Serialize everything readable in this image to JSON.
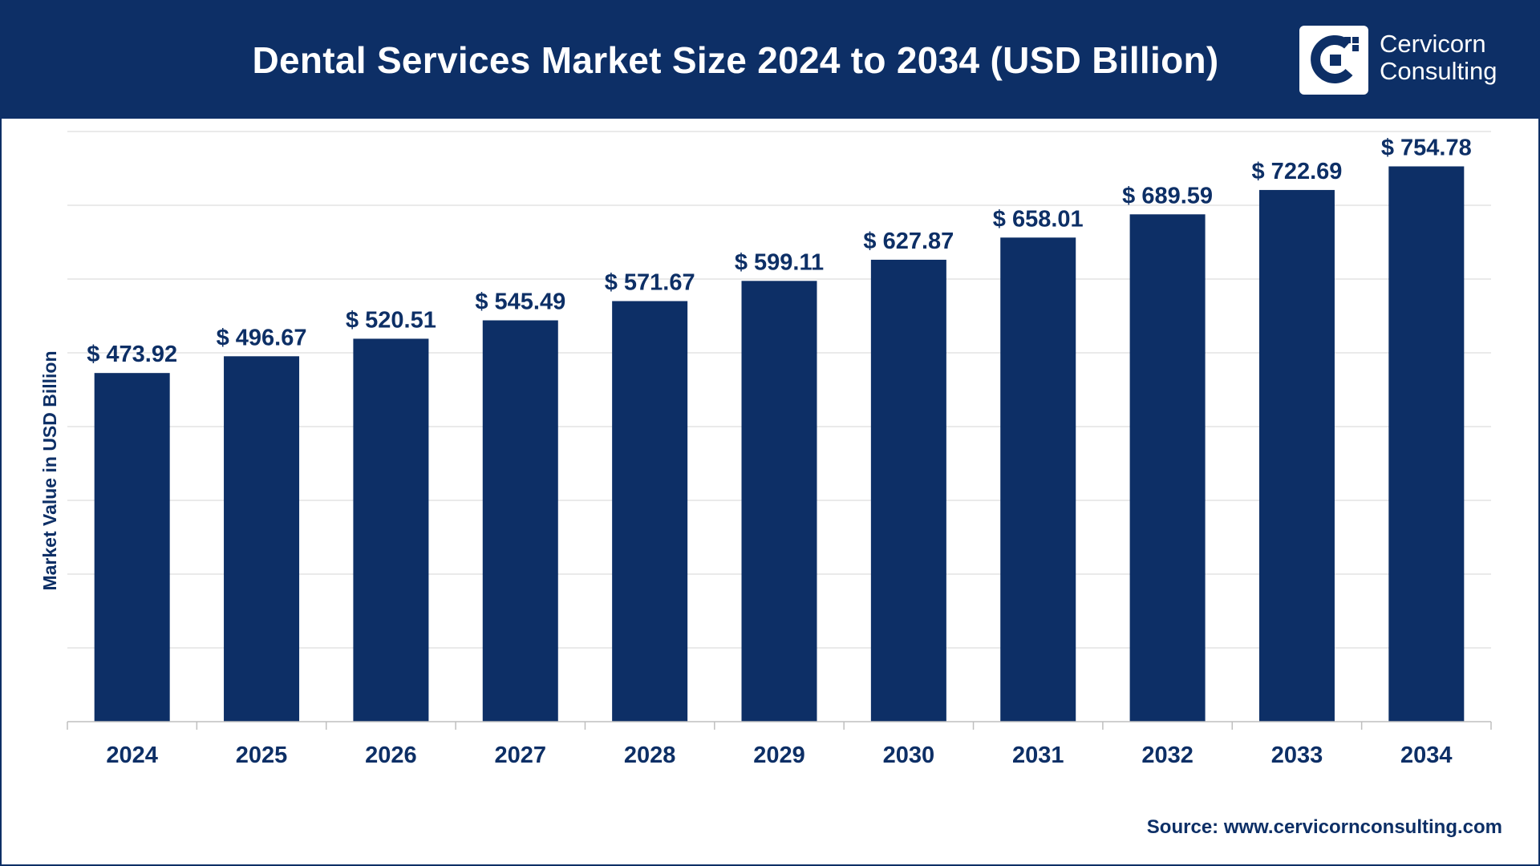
{
  "header": {
    "title": "Dental Services Market Size 2024 to 2034 (USD Billion)"
  },
  "logo": {
    "line1": "Cervicorn",
    "line2": "Consulting",
    "icon": "cervicorn-c-logo-icon"
  },
  "colors": {
    "brand": "#0d2f66",
    "bar": "#0d2f66",
    "grid": "#e3e3e3",
    "background": "#ffffff"
  },
  "chart_data": {
    "type": "bar",
    "title": "Dental Services Market Size 2024 to 2034 (USD Billion)",
    "xlabel": "",
    "ylabel": "Market Value in USD Billion",
    "categories": [
      "2024",
      "2025",
      "2026",
      "2027",
      "2028",
      "2029",
      "2030",
      "2031",
      "2032",
      "2033",
      "2034"
    ],
    "values": [
      473.92,
      496.67,
      520.51,
      545.49,
      571.67,
      599.11,
      627.87,
      658.01,
      689.59,
      722.69,
      754.78
    ],
    "labels": [
      "$ 473.92",
      "$ 496.67",
      "$ 520.51",
      "$ 545.49",
      "$ 571.67",
      "$ 599.11",
      "$ 627.87",
      "$ 658.01",
      "$ 689.59",
      "$ 722.69",
      "$ 754.78"
    ],
    "ylim": [
      0,
      800
    ],
    "grid": true,
    "legend": "none"
  },
  "footer": {
    "source": "Source: www.cervicornconsulting.com"
  }
}
